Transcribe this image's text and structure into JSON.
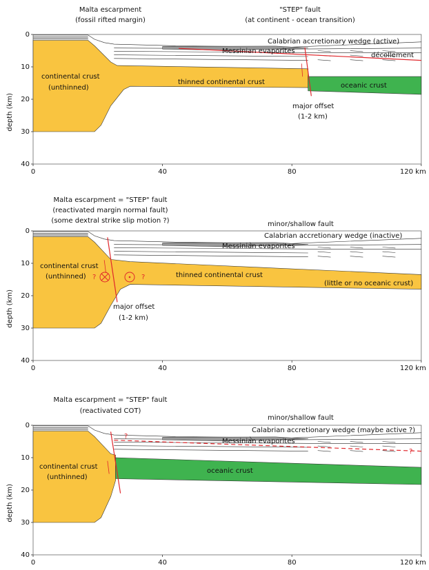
{
  "panels": [
    {
      "headings": [
        "Malta escarpment",
        "(fossil rifted margin)",
        "\"STEP\" fault",
        "(at continent - ocean transition)"
      ],
      "labels": [
        "Calabrian accretionary wedge (active)",
        "Messinian evaporites",
        "décollement",
        "continental crust",
        "(unthinned)",
        "thinned continental crust",
        "oceanic crust",
        "major offset",
        "(1-2 km)"
      ],
      "x_ticks": [
        "0",
        "40",
        "80",
        "120 km"
      ],
      "y_ticks": [
        "0",
        "10",
        "20",
        "30",
        "40"
      ],
      "y_title": "depth (km)"
    },
    {
      "headings": [
        "Malta escarpment = \"STEP\" fault",
        "(reactivated margin normal fault)",
        "(some dextral strike slip motion ?)"
      ],
      "labels": [
        "minor/shallow fault",
        "Calabrian accretionary wedge (inactive)",
        "Messinian evaporites",
        "continental crust",
        "(unthinned)",
        "?",
        "?",
        "thinned continental crust",
        "(little or no oceanic crust)",
        "major offset",
        "(1-2 km)"
      ],
      "x_ticks": [
        "0",
        "40",
        "80",
        "120 km"
      ],
      "y_ticks": [
        "0",
        "10",
        "20",
        "30",
        "40"
      ],
      "y_title": "depth (km)"
    },
    {
      "headings": [
        "Malta escarpment = \"STEP\" fault",
        "(reactivated COT)"
      ],
      "labels": [
        "minor/shallow fault",
        "Calabrian accretionary wedge (maybe active ?)",
        "Messinian evaporites",
        "continental crust",
        "(unthinned)",
        "oceanic crust",
        "?",
        "?"
      ],
      "x_ticks": [
        "0",
        "40",
        "80",
        "120 km"
      ],
      "y_ticks": [
        "0",
        "10",
        "20",
        "30",
        "40"
      ],
      "y_title": "depth (km)"
    }
  ]
}
